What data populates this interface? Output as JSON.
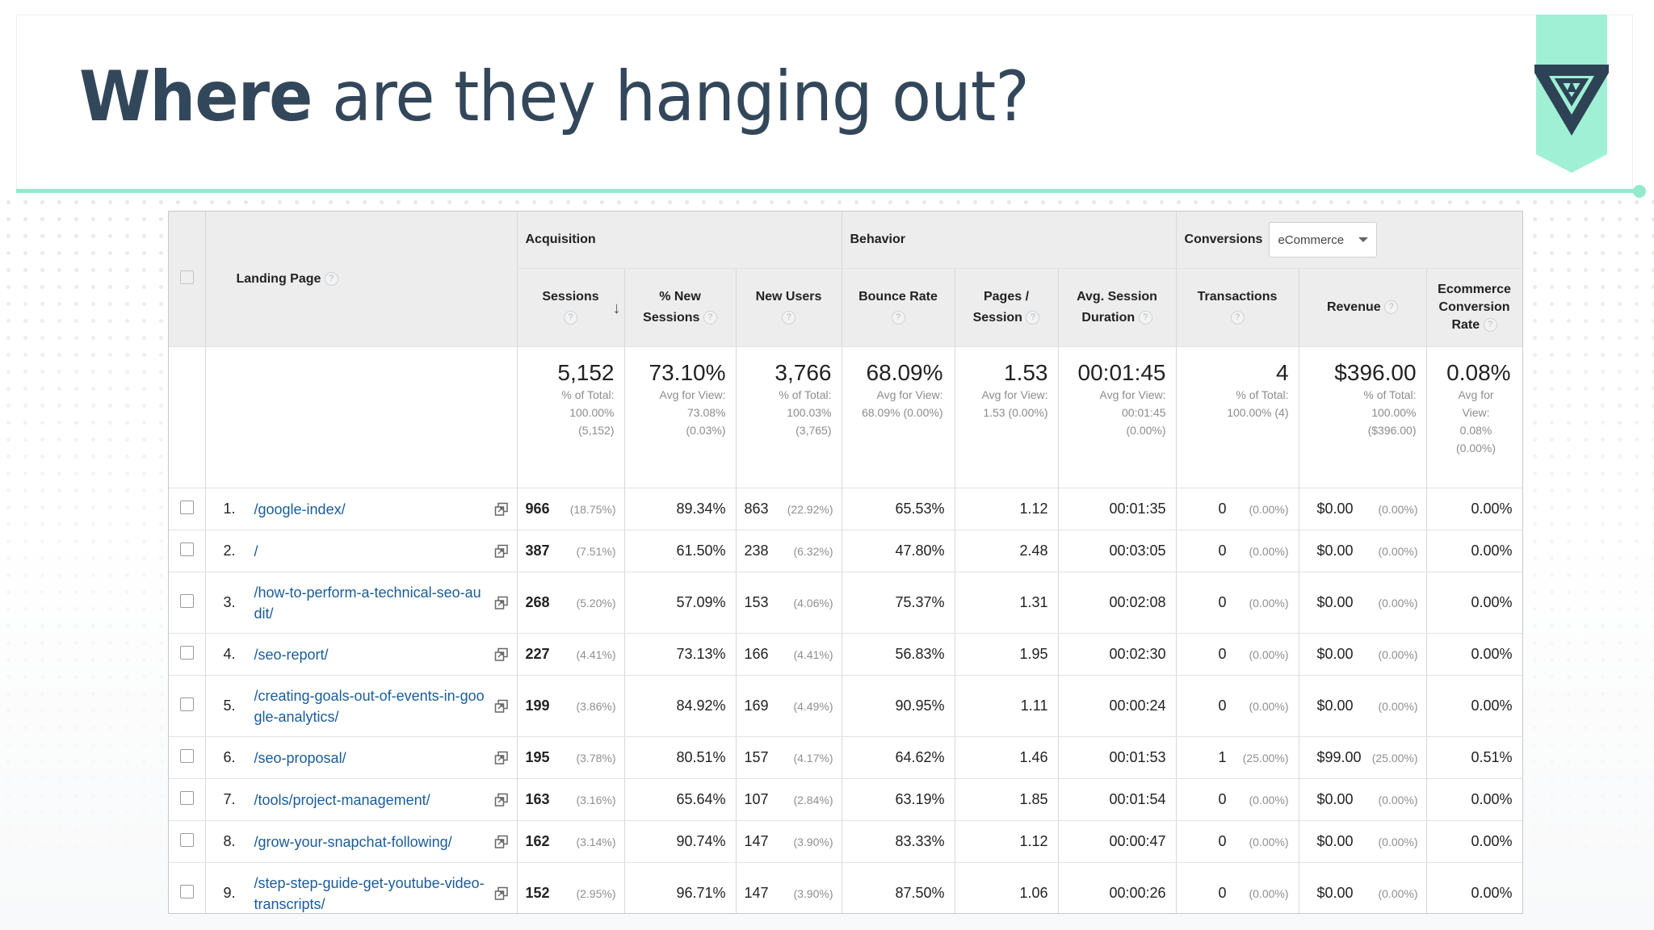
{
  "title": {
    "bold": "Where",
    "rest": " are they hanging out?"
  },
  "colors": {
    "accent": "#93eacb",
    "title": "#33475b",
    "link": "#1a5c99",
    "logo": "#2e4256"
  },
  "table": {
    "groups": {
      "acquisition": "Acquisition",
      "behavior": "Behavior",
      "conversions": "Conversions",
      "conversions_select": "eCommerce"
    },
    "headers": {
      "landing_page": "Landing Page",
      "sessions": "Sessions",
      "new_sessions": [
        "% New",
        "Sessions"
      ],
      "new_users": "New Users",
      "bounce_rate": "Bounce Rate",
      "pages_session": [
        "Pages /",
        "Session"
      ],
      "avg_session": [
        "Avg. Session",
        "Duration"
      ],
      "transactions": "Transactions",
      "revenue": "Revenue",
      "ecom_rate": [
        "Ecommerce",
        "Conversion",
        "Rate"
      ]
    },
    "totals": {
      "sessions": {
        "value": "5,152",
        "lines": [
          "% of Total:",
          "100.00%",
          "(5,152)"
        ]
      },
      "new_sessions": {
        "value": "73.10%",
        "lines": [
          "Avg for View:",
          "73.08%",
          "(0.03%)"
        ]
      },
      "new_users": {
        "value": "3,766",
        "lines": [
          "% of Total:",
          "100.03%",
          "(3,765)"
        ]
      },
      "bounce_rate": {
        "value": "68.09%",
        "lines": [
          "Avg for View:",
          "68.09% (0.00%)"
        ]
      },
      "pages_session": {
        "value": "1.53",
        "lines": [
          "Avg for View:",
          "1.53 (0.00%)"
        ]
      },
      "avg_session": {
        "value": "00:01:45",
        "lines": [
          "Avg for View:",
          "00:01:45",
          "(0.00%)"
        ]
      },
      "transactions": {
        "value": "4",
        "lines": [
          "% of Total:",
          "100.00% (4)"
        ]
      },
      "revenue": {
        "value": "$396.00",
        "lines": [
          "% of Total:",
          "100.00%",
          "($396.00)"
        ]
      },
      "ecom_rate": {
        "value": "0.08%",
        "lines": [
          "Avg for",
          "View:",
          "0.08%",
          "(0.00%)"
        ]
      }
    },
    "rows": [
      {
        "rank": "1.",
        "page": "/google-index/",
        "sessions": "966",
        "sessions_pct": "(18.75%)",
        "new_sessions": "89.34%",
        "new_users": "863",
        "new_users_pct": "(22.92%)",
        "bounce": "65.53%",
        "pages": "1.12",
        "duration": "00:01:35",
        "trans": "0",
        "trans_pct": "(0.00%)",
        "revenue": "$0.00",
        "revenue_pct": "(0.00%)",
        "ecom": "0.00%"
      },
      {
        "rank": "2.",
        "page": "/",
        "sessions": "387",
        "sessions_pct": "(7.51%)",
        "new_sessions": "61.50%",
        "new_users": "238",
        "new_users_pct": "(6.32%)",
        "bounce": "47.80%",
        "pages": "2.48",
        "duration": "00:03:05",
        "trans": "0",
        "trans_pct": "(0.00%)",
        "revenue": "$0.00",
        "revenue_pct": "(0.00%)",
        "ecom": "0.00%"
      },
      {
        "rank": "3.",
        "page": "/how-to-perform-a-technical-seo-audit/",
        "sessions": "268",
        "sessions_pct": "(5.20%)",
        "new_sessions": "57.09%",
        "new_users": "153",
        "new_users_pct": "(4.06%)",
        "bounce": "75.37%",
        "pages": "1.31",
        "duration": "00:02:08",
        "trans": "0",
        "trans_pct": "(0.00%)",
        "revenue": "$0.00",
        "revenue_pct": "(0.00%)",
        "ecom": "0.00%"
      },
      {
        "rank": "4.",
        "page": "/seo-report/",
        "sessions": "227",
        "sessions_pct": "(4.41%)",
        "new_sessions": "73.13%",
        "new_users": "166",
        "new_users_pct": "(4.41%)",
        "bounce": "56.83%",
        "pages": "1.95",
        "duration": "00:02:30",
        "trans": "0",
        "trans_pct": "(0.00%)",
        "revenue": "$0.00",
        "revenue_pct": "(0.00%)",
        "ecom": "0.00%"
      },
      {
        "rank": "5.",
        "page": "/creating-goals-out-of-events-in-google-analytics/",
        "sessions": "199",
        "sessions_pct": "(3.86%)",
        "new_sessions": "84.92%",
        "new_users": "169",
        "new_users_pct": "(4.49%)",
        "bounce": "90.95%",
        "pages": "1.11",
        "duration": "00:00:24",
        "trans": "0",
        "trans_pct": "(0.00%)",
        "revenue": "$0.00",
        "revenue_pct": "(0.00%)",
        "ecom": "0.00%"
      },
      {
        "rank": "6.",
        "page": "/seo-proposal/",
        "sessions": "195",
        "sessions_pct": "(3.78%)",
        "new_sessions": "80.51%",
        "new_users": "157",
        "new_users_pct": "(4.17%)",
        "bounce": "64.62%",
        "pages": "1.46",
        "duration": "00:01:53",
        "trans": "1",
        "trans_pct": "(25.00%)",
        "revenue": "$99.00",
        "revenue_pct": "(25.00%)",
        "ecom": "0.51%"
      },
      {
        "rank": "7.",
        "page": "/tools/project-management/",
        "sessions": "163",
        "sessions_pct": "(3.16%)",
        "new_sessions": "65.64%",
        "new_users": "107",
        "new_users_pct": "(2.84%)",
        "bounce": "63.19%",
        "pages": "1.85",
        "duration": "00:01:54",
        "trans": "0",
        "trans_pct": "(0.00%)",
        "revenue": "$0.00",
        "revenue_pct": "(0.00%)",
        "ecom": "0.00%"
      },
      {
        "rank": "8.",
        "page": "/grow-your-snapchat-following/",
        "sessions": "162",
        "sessions_pct": "(3.14%)",
        "new_sessions": "90.74%",
        "new_users": "147",
        "new_users_pct": "(3.90%)",
        "bounce": "83.33%",
        "pages": "1.12",
        "duration": "00:00:47",
        "trans": "0",
        "trans_pct": "(0.00%)",
        "revenue": "$0.00",
        "revenue_pct": "(0.00%)",
        "ecom": "0.00%"
      },
      {
        "rank": "9.",
        "page": "/step-step-guide-get-youtube-video-transcripts/",
        "sessions": "152",
        "sessions_pct": "(2.95%)",
        "new_sessions": "96.71%",
        "new_users": "147",
        "new_users_pct": "(3.90%)",
        "bounce": "87.50%",
        "pages": "1.06",
        "duration": "00:00:26",
        "trans": "0",
        "trans_pct": "(0.00%)",
        "revenue": "$0.00",
        "revenue_pct": "(0.00%)",
        "ecom": "0.00%"
      }
    ]
  }
}
